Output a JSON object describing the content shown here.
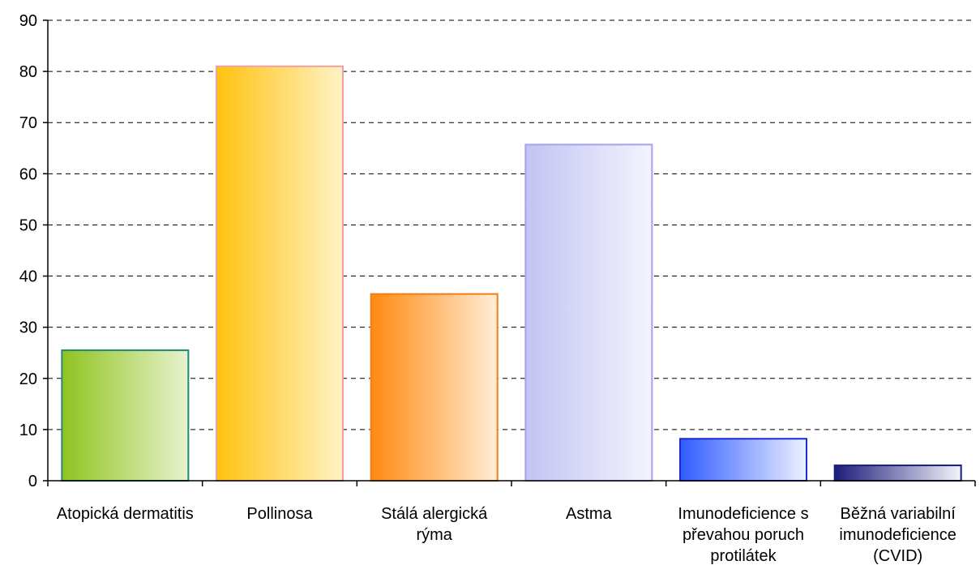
{
  "chart_data": {
    "type": "bar",
    "title": "",
    "xlabel": "",
    "ylabel": "",
    "ylim": [
      0,
      90
    ],
    "yticks": [
      0,
      10,
      20,
      30,
      40,
      50,
      60,
      70,
      80,
      90
    ],
    "grid": true,
    "categories": [
      [
        "Atopická dermatitis"
      ],
      [
        "Pollinosa"
      ],
      [
        "Stálá alergická",
        "rýma"
      ],
      [
        "Astma"
      ],
      [
        "Imunodeficience s",
        "převahou poruch",
        "protilátek"
      ],
      [
        "Běžná variabilní",
        "imunodeficience",
        "(CVID)"
      ]
    ],
    "values": [
      25.5,
      81,
      36.5,
      65.7,
      8.2,
      3
    ]
  },
  "bar_colors": [
    {
      "from": "#8fc31f",
      "to": "#e8f3cf",
      "stroke": "#1f8a7a"
    },
    {
      "from": "#ffc20e",
      "to": "#fff3c6",
      "stroke": "#f4a0a0"
    },
    {
      "from": "#ff8a10",
      "to": "#ffeed6",
      "stroke": "#f07e1a"
    },
    {
      "from": "#c3c3f5",
      "to": "#f4f4fd",
      "stroke": "#a4a4ee"
    },
    {
      "from": "#2f5bff",
      "to": "#eef2ff",
      "stroke": "#1e2ad4"
    },
    {
      "from": "#1c1c7a",
      "to": "#f4f4fa",
      "stroke": "#1c1c7a"
    }
  ]
}
